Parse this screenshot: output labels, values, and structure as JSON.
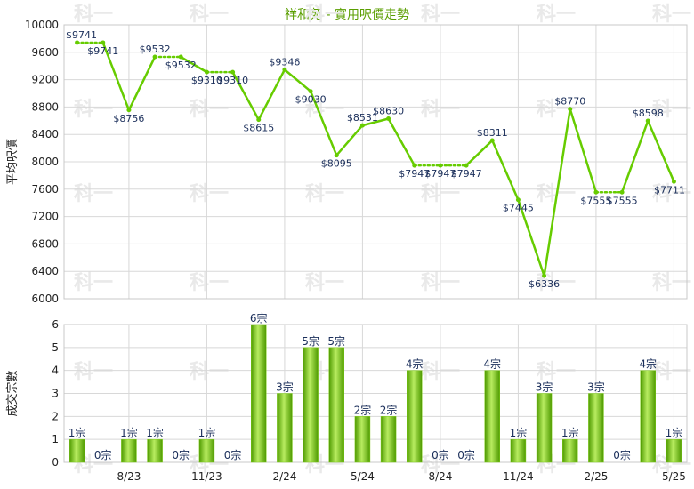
{
  "chart_data": [
    {
      "type": "line",
      "title": "祥和苑 - 實用呎價走勢",
      "ylabel": "平均呎價",
      "ylim": [
        6000,
        10000
      ],
      "yticks": [
        "6000",
        "6400",
        "6800",
        "7200",
        "7600",
        "8000",
        "8400",
        "8800",
        "9200",
        "9600",
        "10000"
      ],
      "x_tick_labels": [
        "8/23",
        "11/23",
        "2/24",
        "5/24",
        "8/24",
        "11/24",
        "2/25",
        "5/25"
      ],
      "grid": true,
      "series": [
        {
          "values": [
            9741,
            9741,
            8756,
            9532,
            9532,
            9310,
            9310,
            8615,
            9346,
            9030,
            8095,
            8531,
            8630,
            7947,
            7947,
            7947,
            8311,
            7445,
            6336,
            8770,
            7555,
            7555,
            8598,
            7711
          ],
          "labels": [
            "$9741",
            "$9741",
            "$8756",
            "$9532",
            "$9532",
            "$9310",
            "$9310",
            "$8615",
            "$9346",
            "$9030",
            "$8095",
            "$8531",
            "$8630",
            "$7947",
            "$7947",
            "$7947",
            "$8311",
            "$7445",
            "$6336",
            "$8770",
            "$7555",
            "$7555",
            "$8598",
            "$7711"
          ],
          "carried_forward": [
            false,
            true,
            false,
            false,
            true,
            false,
            true,
            false,
            false,
            false,
            false,
            false,
            false,
            false,
            true,
            true,
            false,
            false,
            false,
            false,
            false,
            true,
            false,
            false
          ]
        }
      ],
      "colors": {
        "line": "#66cc00",
        "dotted": "#66cc00",
        "point": "#66cc00"
      }
    },
    {
      "type": "bar",
      "ylabel": "成交宗數",
      "ylim": [
        0,
        6
      ],
      "yticks": [
        "0",
        "1",
        "2",
        "3",
        "4",
        "5",
        "6"
      ],
      "x_tick_labels": [
        "8/23",
        "11/23",
        "2/24",
        "5/24",
        "8/24",
        "11/24",
        "2/25",
        "5/25"
      ],
      "series": [
        {
          "values": [
            1,
            0,
            1,
            1,
            0,
            1,
            0,
            6,
            3,
            5,
            5,
            2,
            2,
            4,
            0,
            0,
            4,
            1,
            3,
            1,
            3,
            0,
            4,
            1
          ],
          "labels": [
            "1宗",
            "0宗",
            "1宗",
            "1宗",
            "0宗",
            "1宗",
            "0宗",
            "6宗",
            "3宗",
            "5宗",
            "5宗",
            "2宗",
            "2宗",
            "4宗",
            "0宗",
            "0宗",
            "4宗",
            "1宗",
            "3宗",
            "1宗",
            "3宗",
            "0宗",
            "4宗",
            "1宗"
          ]
        }
      ],
      "colors": {
        "bar_light": "#b8ec60",
        "bar_mid": "#7fcc1a",
        "bar_dark": "#4e9a00"
      }
    }
  ],
  "watermark": "科一"
}
